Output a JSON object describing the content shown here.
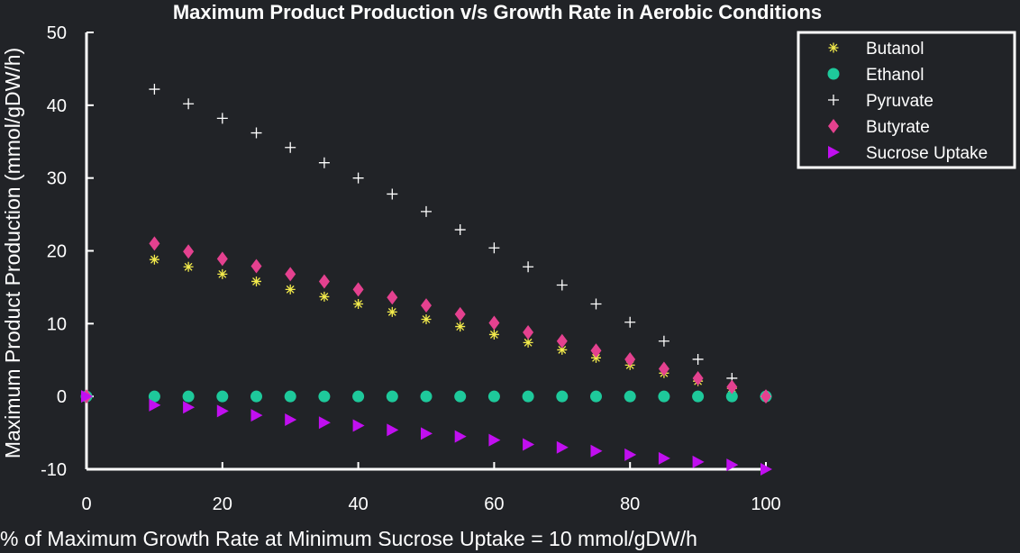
{
  "chart_data": {
    "type": "scatter",
    "title": "Maximum Product Production v/s Growth Rate in Aerobic Conditions",
    "xlabel": "% of Maximum Growth Rate at Minimum Sucrose Uptake = 10 mmol/gDW/h",
    "ylabel": "Maximum Product Production (mmol/gDW/h)",
    "xlim": [
      0,
      100
    ],
    "ylim": [
      -10,
      50
    ],
    "xticks": [
      0,
      20,
      40,
      60,
      80,
      100
    ],
    "yticks": [
      -10,
      0,
      10,
      20,
      30,
      40,
      50
    ],
    "grid": false,
    "legend_position": "top-right",
    "colors": {
      "background": "#212327",
      "axes": "#ffffff",
      "butanol": "#f2ea4b",
      "ethanol": "#1ec99b",
      "pyruvate": "#ffffff",
      "butyrate": "#e4418f",
      "sucrose": "#c10ff0"
    },
    "x": [
      0,
      10,
      15,
      20,
      25,
      30,
      35,
      40,
      45,
      50,
      55,
      60,
      65,
      70,
      75,
      80,
      85,
      90,
      95,
      100
    ],
    "series": [
      {
        "name": "Butanol",
        "marker": "asterisk",
        "color": "#f2ea4b",
        "values": [
          0,
          18.8,
          17.8,
          16.8,
          15.8,
          14.7,
          13.7,
          12.7,
          11.6,
          10.6,
          9.6,
          8.5,
          7.4,
          6.4,
          5.3,
          4.3,
          3.2,
          2.1,
          1.1,
          0
        ]
      },
      {
        "name": "Ethanol",
        "marker": "circle",
        "color": "#1ec99b",
        "values": [
          0,
          0,
          0,
          0,
          0,
          0,
          0,
          0,
          0,
          0,
          0,
          0,
          0,
          0,
          0,
          0,
          0,
          0,
          0,
          0
        ]
      },
      {
        "name": "Pyruvate",
        "marker": "plus",
        "color": "#ffffff",
        "values": [
          0,
          42.2,
          40.2,
          38.2,
          36.2,
          34.2,
          32.1,
          30.0,
          27.8,
          25.4,
          22.9,
          20.4,
          17.8,
          15.3,
          12.7,
          10.2,
          7.6,
          5.1,
          2.5,
          0
        ]
      },
      {
        "name": "Butyrate",
        "marker": "diamond",
        "color": "#e4418f",
        "values": [
          0,
          21.0,
          19.9,
          18.9,
          17.9,
          16.8,
          15.8,
          14.7,
          13.6,
          12.5,
          11.3,
          10.1,
          8.8,
          7.6,
          6.3,
          5.1,
          3.8,
          2.5,
          1.3,
          0
        ]
      },
      {
        "name": "Sucrose Uptake",
        "marker": "triangle-right",
        "color": "#c10ff0",
        "values": [
          0,
          -1.2,
          -1.5,
          -2.0,
          -2.6,
          -3.2,
          -3.6,
          -4.0,
          -4.6,
          -5.1,
          -5.5,
          -6.0,
          -6.6,
          -7.0,
          -7.5,
          -8.0,
          -8.5,
          -9.0,
          -9.4,
          -10.0
        ]
      }
    ]
  }
}
